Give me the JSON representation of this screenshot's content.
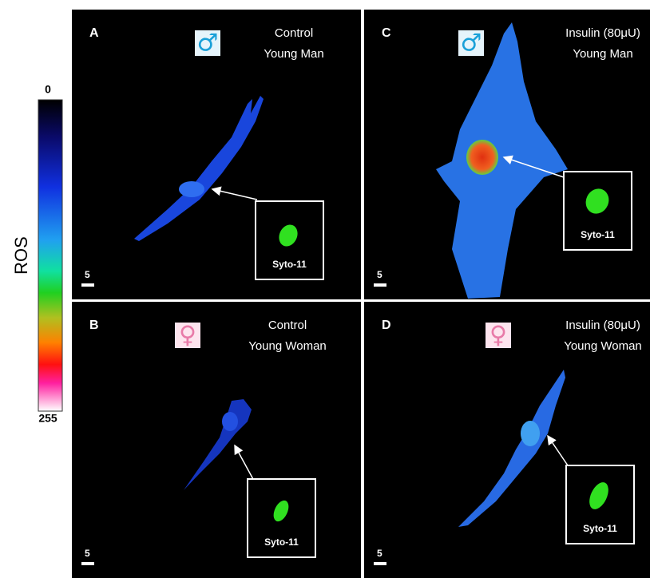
{
  "colorbar": {
    "label": "ROS",
    "min_label": "0",
    "max_label": "255"
  },
  "panels": [
    {
      "letter": "A",
      "condition": "Control",
      "subject": "Young Man",
      "symbol": "♂",
      "inset_label": "Syto-11",
      "scale_label": "5"
    },
    {
      "letter": "B",
      "condition": "Control",
      "subject": "Young Woman",
      "symbol": "♀",
      "inset_label": "Syto-11",
      "scale_label": "5"
    },
    {
      "letter": "C",
      "condition": "Insulin (80μU)",
      "subject": "Young Man",
      "symbol": "♂",
      "inset_label": "Syto-11",
      "scale_label": "5"
    },
    {
      "letter": "D",
      "condition": "Insulin (80μU)",
      "subject": "Young Woman",
      "symbol": "♀",
      "inset_label": "Syto-11",
      "scale_label": "5"
    }
  ]
}
